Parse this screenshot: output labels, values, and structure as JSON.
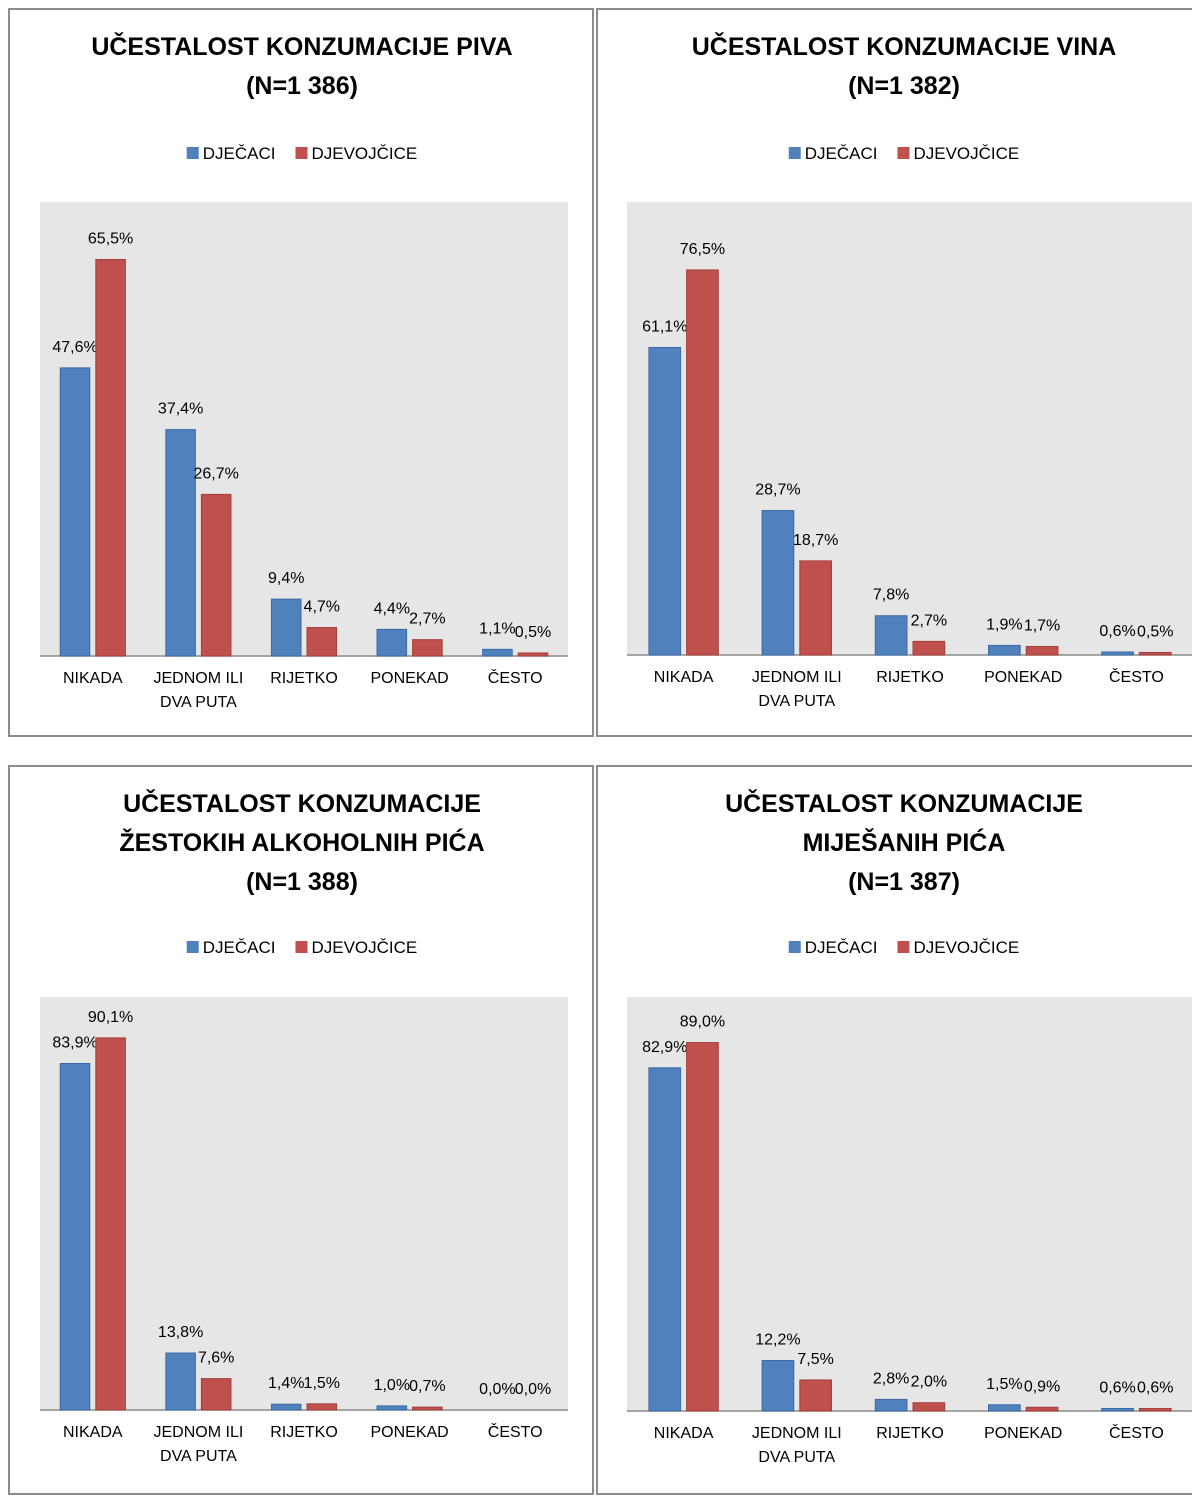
{
  "colors": {
    "series_boys": "#4f81bd",
    "series_girls": "#c0504d",
    "plot_bg": "#e6e6e6"
  },
  "chart_data": [
    {
      "type": "bar",
      "title": [
        "UČESTALOST KONZUMACIJE PIVA",
        "(N=1 386)"
      ],
      "legend": [
        "DJEČACI",
        "DJEVOJČICE"
      ],
      "categories": [
        [
          "NIKADA"
        ],
        [
          "JEDNOM ILI",
          "DVA PUTA"
        ],
        [
          "RIJETKO"
        ],
        [
          "PONEKAD"
        ],
        [
          "ČESTO"
        ]
      ],
      "series": [
        {
          "name": "DJEČACI",
          "values": [
            47.6,
            37.4,
            9.4,
            4.4,
            1.1
          ],
          "labels": [
            "47,6%",
            "37,4%",
            "9,4%",
            "4,4%",
            "1,1%"
          ]
        },
        {
          "name": "DJEVOJČICE",
          "values": [
            65.5,
            26.7,
            4.7,
            2.7,
            0.5
          ],
          "labels": [
            "65,5%",
            "26,7%",
            "4,7%",
            "2,7%",
            "0,5%"
          ]
        }
      ],
      "legend_position": "top",
      "grid": false
    },
    {
      "type": "bar",
      "title": [
        "UČESTALOST KONZUMACIJE VINA",
        "(N=1 382)"
      ],
      "legend": [
        "DJEČACI",
        "DJEVOJČICE"
      ],
      "categories": [
        [
          "NIKADA"
        ],
        [
          "JEDNOM ILI",
          "DVA PUTA"
        ],
        [
          "RIJETKO"
        ],
        [
          "PONEKAD"
        ],
        [
          "ČESTO"
        ]
      ],
      "series": [
        {
          "name": "DJEČACI",
          "values": [
            61.1,
            28.7,
            7.8,
            1.9,
            0.6
          ],
          "labels": [
            "61,1%",
            "28,7%",
            "7,8%",
            "1,9%",
            "0,6%"
          ]
        },
        {
          "name": "DJEVOJČICE",
          "values": [
            76.5,
            18.7,
            2.7,
            1.7,
            0.5
          ],
          "labels": [
            "76,5%",
            "18,7%",
            "2,7%",
            "1,7%",
            "0,5%"
          ]
        }
      ],
      "legend_position": "top",
      "grid": false
    },
    {
      "type": "bar",
      "title": [
        "UČESTALOST  KONZUMACIJE",
        "ŽESTOKIH ALKOHOLNIH PIĆA",
        "(N=1 388)"
      ],
      "legend": [
        "DJEČACI",
        "DJEVOJČICE"
      ],
      "categories": [
        [
          "NIKADA"
        ],
        [
          "JEDNOM ILI",
          "DVA PUTA"
        ],
        [
          "RIJETKO"
        ],
        [
          "PONEKAD"
        ],
        [
          "ČESTO"
        ]
      ],
      "series": [
        {
          "name": "DJEČACI",
          "values": [
            83.9,
            13.8,
            1.4,
            1.0,
            0.0
          ],
          "labels": [
            "83,9%",
            "13,8%",
            "1,4%",
            "1,0%",
            "0,0%"
          ]
        },
        {
          "name": "DJEVOJČICE",
          "values": [
            90.1,
            7.6,
            1.5,
            0.7,
            0.0
          ],
          "labels": [
            "90,1%",
            "7,6%",
            "1,5%",
            "0,7%",
            "0,0%"
          ]
        }
      ],
      "legend_position": "top",
      "grid": false
    },
    {
      "type": "bar",
      "title": [
        "UČESTALOST KONZUMACIJE",
        "MIJEŠANIH PIĆA",
        "(N=1 387)"
      ],
      "legend": [
        "DJEČACI",
        "DJEVOJČICE"
      ],
      "categories": [
        [
          "NIKADA"
        ],
        [
          "JEDNOM ILI",
          "DVA PUTA"
        ],
        [
          "RIJETKO"
        ],
        [
          "PONEKAD"
        ],
        [
          "ČESTO"
        ]
      ],
      "series": [
        {
          "name": "DJEČACI",
          "values": [
            82.9,
            12.2,
            2.8,
            1.5,
            0.6
          ],
          "labels": [
            "82,9%",
            "12,2%",
            "2,8%",
            "1,5%",
            "0,6%"
          ]
        },
        {
          "name": "DJEVOJČICE",
          "values": [
            89.0,
            7.5,
            2.0,
            0.9,
            0.6
          ],
          "labels": [
            "89,0%",
            "7,5%",
            "2,0%",
            "0,9%",
            "0,6%"
          ]
        }
      ],
      "legend_position": "top",
      "grid": false
    }
  ]
}
